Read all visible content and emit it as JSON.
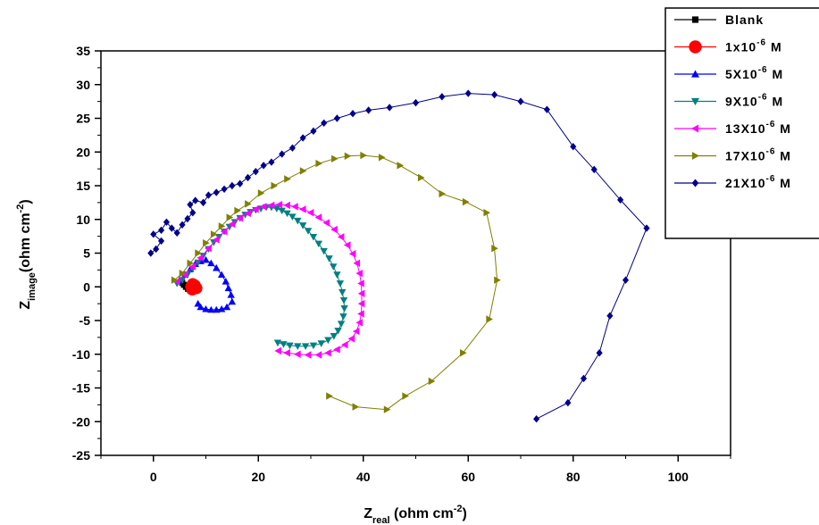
{
  "chart_data": {
    "type": "scatter",
    "title": "",
    "xlabel": {
      "main": "Z",
      "sub": "real",
      "unit": " (ohm cm",
      "sup": "-2",
      "close": ")"
    },
    "ylabel": {
      "main": "Z",
      "sub": "image",
      "unit": "(ohm cm",
      "sup": "-2",
      "close": ")"
    },
    "xlim": [
      -10,
      110
    ],
    "ylim": [
      -25,
      35
    ],
    "xticks": [
      0,
      20,
      40,
      60,
      80,
      100
    ],
    "yticks": [
      -25,
      -20,
      -15,
      -10,
      -5,
      0,
      5,
      10,
      15,
      20,
      25,
      30,
      35
    ],
    "legend_position": "top-right",
    "series": [
      {
        "name": "Blank",
        "label": {
          "base": "Blank",
          "sup": "",
          "tail": ""
        },
        "color": "#000000",
        "marker": "square",
        "points": [
          [
            5.5,
            0.6
          ],
          [
            5.8,
            0.3
          ],
          [
            6.2,
            0.0
          ],
          [
            6.6,
            -0.3
          ],
          [
            7.0,
            -0.5
          ],
          [
            7.3,
            -0.6
          ]
        ]
      },
      {
        "name": "1x10-6 M",
        "label": {
          "base": "1x10",
          "sup": "-6",
          "tail": " M"
        },
        "color": "#ff0000",
        "marker": "circle",
        "points": [
          [
            7.5,
            0.4
          ],
          [
            7.8,
            0.1
          ],
          [
            8.0,
            -0.1
          ],
          [
            7.6,
            -0.3
          ],
          [
            7.2,
            0.0
          ],
          [
            7.9,
            0.2
          ],
          [
            8.2,
            -0.2
          ],
          [
            7.4,
            -0.4
          ]
        ]
      },
      {
        "name": "5X10-6 M",
        "label": {
          "base": "5X10",
          "sup": "-6",
          "tail": " M"
        },
        "color": "#0000ff",
        "marker": "triangle-up",
        "points": [
          [
            5,
            1.0
          ],
          [
            6,
            1.8
          ],
          [
            7,
            2.6
          ],
          [
            8,
            3.4
          ],
          [
            9,
            3.8
          ],
          [
            10,
            4.0
          ],
          [
            11,
            3.5
          ],
          [
            12,
            2.8
          ],
          [
            13,
            1.8
          ],
          [
            13.8,
            0.8
          ],
          [
            14.3,
            -0.2
          ],
          [
            14.8,
            -1.2
          ],
          [
            15,
            -2.2
          ],
          [
            14,
            -3.0
          ],
          [
            13,
            -3.3
          ],
          [
            12,
            -3.4
          ],
          [
            11,
            -3.4
          ],
          [
            10,
            -3.3
          ],
          [
            9,
            -3.0
          ],
          [
            8.5,
            -2.5
          ]
        ]
      },
      {
        "name": "9X10-6 M",
        "label": {
          "base": "9X10",
          "sup": "-6",
          "tail": " M"
        },
        "color": "#008080",
        "marker": "triangle-down",
        "points": [
          [
            4.5,
            0.5
          ],
          [
            5.5,
            1.0
          ],
          [
            6.5,
            1.8
          ],
          [
            7.5,
            2.7
          ],
          [
            8.5,
            3.6
          ],
          [
            9.5,
            4.6
          ],
          [
            10.5,
            5.6
          ],
          [
            11.5,
            6.6
          ],
          [
            12.5,
            7.4
          ],
          [
            13.5,
            8.2
          ],
          [
            14.5,
            8.9
          ],
          [
            15.5,
            9.6
          ],
          [
            16.5,
            10.2
          ],
          [
            17.5,
            10.7
          ],
          [
            18.5,
            11.1
          ],
          [
            19.5,
            11.4
          ],
          [
            20.5,
            11.6
          ],
          [
            21.5,
            11.8
          ],
          [
            22.5,
            11.8
          ],
          [
            23.5,
            11.6
          ],
          [
            24.5,
            11.3
          ],
          [
            25.5,
            10.9
          ],
          [
            26.5,
            10.4
          ],
          [
            27.5,
            9.8
          ],
          [
            28.5,
            9.1
          ],
          [
            29.5,
            8.3
          ],
          [
            30.5,
            7.4
          ],
          [
            31.5,
            6.4
          ],
          [
            32.5,
            5.3
          ],
          [
            33.5,
            4.2
          ],
          [
            34.3,
            3.0
          ],
          [
            35,
            1.8
          ],
          [
            35.6,
            0.5
          ],
          [
            36,
            -0.8
          ],
          [
            36.3,
            -2.0
          ],
          [
            36.4,
            -3.2
          ],
          [
            36.2,
            -4.4
          ],
          [
            35.8,
            -5.5
          ],
          [
            35.2,
            -6.5
          ],
          [
            34.4,
            -7.3
          ],
          [
            33.3,
            -7.9
          ],
          [
            32,
            -8.4
          ],
          [
            30.5,
            -8.7
          ],
          [
            29,
            -8.8
          ],
          [
            27.5,
            -8.8
          ],
          [
            26,
            -8.7
          ],
          [
            24.8,
            -8.5
          ],
          [
            23.7,
            -8.3
          ]
        ]
      },
      {
        "name": "13X10-6 M",
        "label": {
          "base": "13X10",
          "sup": "-6",
          "tail": " M"
        },
        "color": "#ff00ff",
        "marker": "triangle-left",
        "points": [
          [
            4.5,
            0.8
          ],
          [
            6,
            1.8
          ],
          [
            7.5,
            3.0
          ],
          [
            9,
            4.3
          ],
          [
            10.5,
            5.7
          ],
          [
            12,
            7.0
          ],
          [
            13.5,
            8.2
          ],
          [
            15,
            9.3
          ],
          [
            16.5,
            10.2
          ],
          [
            18,
            10.9
          ],
          [
            19.5,
            11.5
          ],
          [
            21,
            11.9
          ],
          [
            22.5,
            12.1
          ],
          [
            24,
            12.2
          ],
          [
            25.5,
            12.1
          ],
          [
            27,
            11.9
          ],
          [
            28.5,
            11.5
          ],
          [
            30,
            11.0
          ],
          [
            31.5,
            10.3
          ],
          [
            33,
            9.5
          ],
          [
            34.5,
            8.5
          ],
          [
            35.8,
            7.4
          ],
          [
            37,
            6.2
          ],
          [
            38,
            4.9
          ],
          [
            38.8,
            3.5
          ],
          [
            39.3,
            2.0
          ],
          [
            39.6,
            0.5
          ],
          [
            39.7,
            -1.0
          ],
          [
            39.7,
            -2.5
          ],
          [
            39.6,
            -4.0
          ],
          [
            39.3,
            -5.3
          ],
          [
            38.7,
            -6.6
          ],
          [
            37.8,
            -7.7
          ],
          [
            36.5,
            -8.6
          ],
          [
            35,
            -9.3
          ],
          [
            33.3,
            -9.8
          ],
          [
            31.5,
            -10.1
          ],
          [
            29.5,
            -10.1
          ],
          [
            27.5,
            -10.0
          ],
          [
            25.5,
            -9.8
          ],
          [
            23.8,
            -9.5
          ]
        ]
      },
      {
        "name": "17X10-6 M",
        "label": {
          "base": "17X10",
          "sup": "-6",
          "tail": " M"
        },
        "color": "#808000",
        "marker": "triangle-right",
        "points": [
          [
            4,
            1.0
          ],
          [
            5.5,
            2.0
          ],
          [
            7,
            3.5
          ],
          [
            8.5,
            5.0
          ],
          [
            10,
            6.5
          ],
          [
            11.5,
            7.8
          ],
          [
            13,
            9.0
          ],
          [
            14.5,
            10.3
          ],
          [
            16,
            11.3
          ],
          [
            18,
            12.3
          ],
          [
            20.5,
            13.9
          ],
          [
            23,
            15.0
          ],
          [
            25.5,
            16.0
          ],
          [
            28.5,
            17.2
          ],
          [
            31.5,
            18.3
          ],
          [
            34.5,
            19.0
          ],
          [
            37,
            19.4
          ],
          [
            40,
            19.5
          ],
          [
            43.5,
            19.2
          ],
          [
            47,
            18.0
          ],
          [
            51,
            16.2
          ],
          [
            55,
            13.8
          ],
          [
            59.5,
            12.6
          ],
          [
            63.5,
            11.0
          ],
          [
            65,
            5.7
          ],
          [
            65.5,
            1.0
          ],
          [
            64,
            -4.8
          ],
          [
            59,
            -9.8
          ],
          [
            53,
            -14.0
          ],
          [
            48,
            -16.2
          ],
          [
            44.5,
            -18.2
          ],
          [
            38.5,
            -17.8
          ],
          [
            33.5,
            -16.2
          ]
        ]
      },
      {
        "name": "21X10-6 M",
        "label": {
          "base": "21X10",
          "sup": "-6",
          "tail": " M"
        },
        "color": "#00008b",
        "marker": "diamond",
        "points": [
          [
            -0.5,
            5.0
          ],
          [
            0.5,
            5.6
          ],
          [
            1.5,
            6.8
          ],
          [
            0,
            7.8
          ],
          [
            1.5,
            8.4
          ],
          [
            2.5,
            9.6
          ],
          [
            3.5,
            8.7
          ],
          [
            4.5,
            8.0
          ],
          [
            5.5,
            9.2
          ],
          [
            6.5,
            10.1
          ],
          [
            7.5,
            11.0
          ],
          [
            7,
            12.2
          ],
          [
            8,
            12.8
          ],
          [
            9.5,
            12.5
          ],
          [
            10.5,
            13.6
          ],
          [
            12,
            14.0
          ],
          [
            13.5,
            14.5
          ],
          [
            15,
            15.0
          ],
          [
            16.5,
            15.3
          ],
          [
            18,
            16.2
          ],
          [
            19.5,
            17.1
          ],
          [
            21,
            18.0
          ],
          [
            22.5,
            18.5
          ],
          [
            24.5,
            19.7
          ],
          [
            26.5,
            20.6
          ],
          [
            28.5,
            22.1
          ],
          [
            30.5,
            23.1
          ],
          [
            32.5,
            24.3
          ],
          [
            35,
            25.0
          ],
          [
            38,
            25.7
          ],
          [
            41,
            26.2
          ],
          [
            45,
            26.6
          ],
          [
            50,
            27.3
          ],
          [
            55,
            28.2
          ],
          [
            60,
            28.7
          ],
          [
            65,
            28.5
          ],
          [
            70,
            27.5
          ],
          [
            75,
            26.3
          ],
          [
            80,
            20.8
          ],
          [
            84,
            17.4
          ],
          [
            89,
            12.9
          ],
          [
            94,
            8.7
          ],
          [
            90,
            1.0
          ],
          [
            87,
            -4.3
          ],
          [
            85,
            -9.8
          ],
          [
            82,
            -13.6
          ],
          [
            79,
            -17.2
          ],
          [
            73,
            -19.6
          ]
        ]
      }
    ]
  }
}
